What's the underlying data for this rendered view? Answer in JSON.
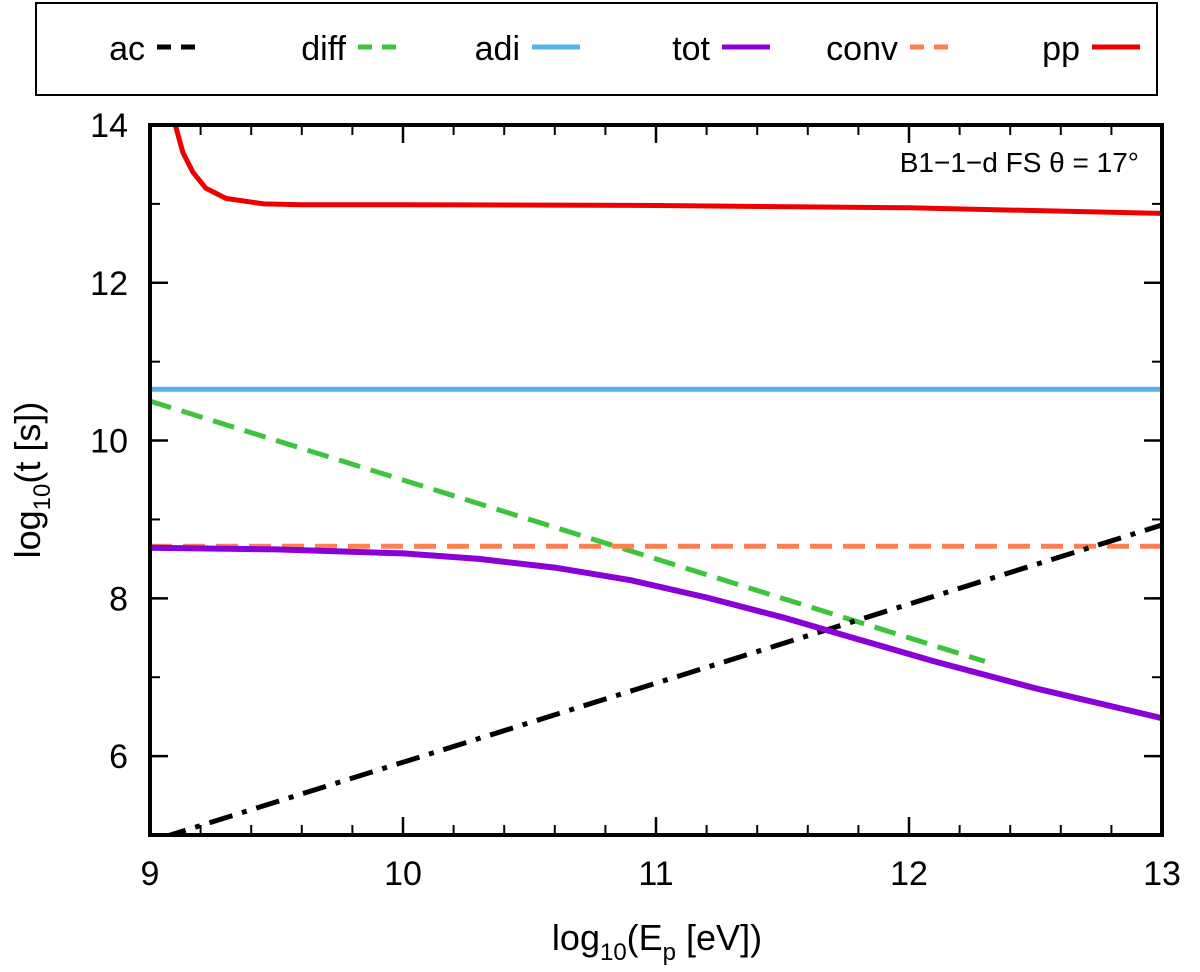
{
  "chart_data": {
    "type": "line",
    "annotation": "B1−1−d  FS  θ = 17°",
    "xlabel": {
      "base": "log",
      "sub": "10",
      "rest_pre": "(E",
      "rest_sub": "p",
      "rest_post": " [eV])"
    },
    "ylabel": {
      "base": "log",
      "sub": "10",
      "rest": "(t [s])"
    },
    "xlim": [
      9,
      13
    ],
    "ylim": [
      5,
      14
    ],
    "xticks": [
      9,
      10,
      11,
      12,
      13
    ],
    "yticks": [
      6,
      8,
      10,
      12,
      14
    ],
    "x_minor_step": 0.2,
    "y_minor_step": 1,
    "series": [
      {
        "name": "ac",
        "color": "#000000",
        "dash": "dashdot",
        "x": [
          9.05,
          13.0
        ],
        "y": [
          4.97,
          8.93
        ]
      },
      {
        "name": "diff",
        "color": "#3cc43c",
        "dash": "dashed",
        "x": [
          9.0,
          10.0,
          11.0,
          12.0,
          12.3
        ],
        "y": [
          10.5,
          9.5,
          8.5,
          7.5,
          7.2
        ]
      },
      {
        "name": "adi",
        "color": "#56b4e9",
        "dash": "solid",
        "x": [
          9.0,
          13.0
        ],
        "y": [
          10.65,
          10.65
        ]
      },
      {
        "name": "tot",
        "color": "#8b00d6",
        "dash": "solid",
        "x": [
          9.0,
          9.5,
          10.0,
          10.3,
          10.6,
          10.9,
          11.2,
          11.5,
          11.8,
          12.1,
          12.5,
          13.0
        ],
        "y": [
          8.64,
          8.62,
          8.57,
          8.5,
          8.39,
          8.23,
          8.01,
          7.76,
          7.48,
          7.2,
          6.86,
          6.48
        ]
      },
      {
        "name": "conv",
        "color": "#ff7f50",
        "dash": "dashed",
        "x": [
          9.0,
          13.0
        ],
        "y": [
          8.66,
          8.66
        ]
      },
      {
        "name": "pp",
        "color": "#ee0000",
        "dash": "solid",
        "x": [
          9.1,
          9.13,
          9.17,
          9.22,
          9.3,
          9.45,
          9.6,
          10.0,
          11.0,
          12.0,
          13.0
        ],
        "y": [
          14.0,
          13.65,
          13.4,
          13.2,
          13.07,
          13.0,
          12.99,
          12.99,
          12.98,
          12.95,
          12.88
        ]
      }
    ]
  }
}
